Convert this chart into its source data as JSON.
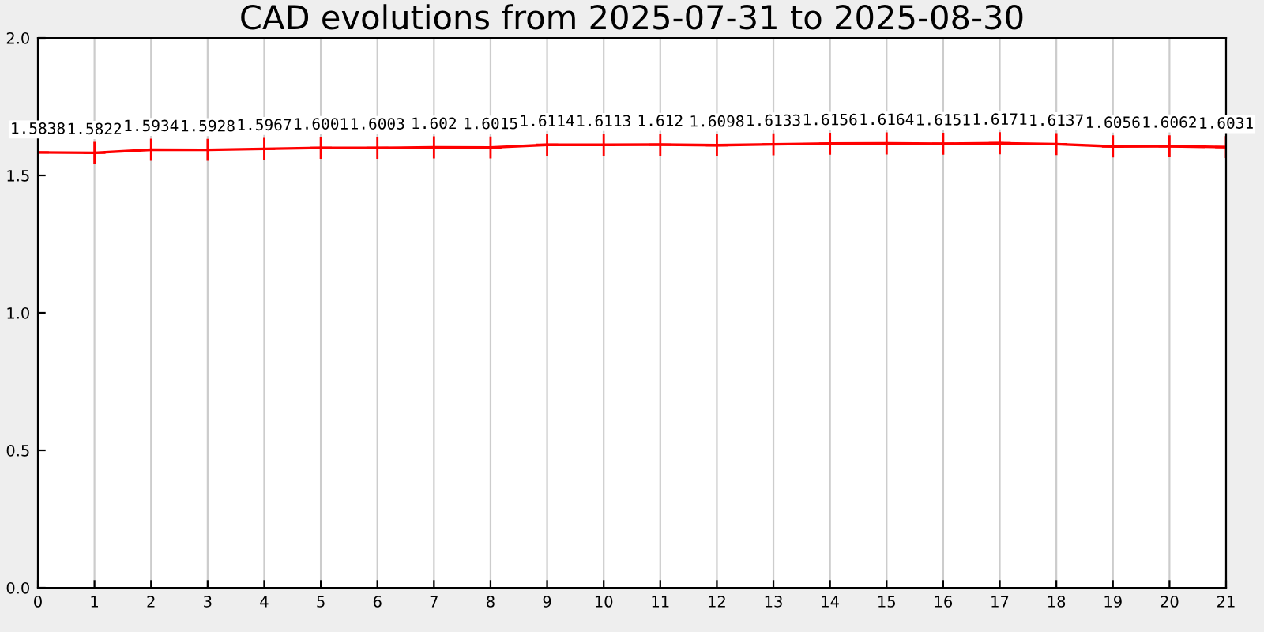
{
  "chart_data": {
    "type": "line",
    "title": "CAD evolutions from 2025-07-31 to 2025-08-30",
    "x": [
      0,
      1,
      2,
      3,
      4,
      5,
      6,
      7,
      8,
      9,
      10,
      11,
      12,
      13,
      14,
      15,
      16,
      17,
      18,
      19,
      20,
      21
    ],
    "series": [
      {
        "color": "#ff0000",
        "values": [
          1.5838,
          1.5822,
          1.5934,
          1.5928,
          1.5967,
          1.6001,
          1.6003,
          1.602,
          1.6015,
          1.6114,
          1.6113,
          1.612,
          1.6098,
          1.6133,
          1.6156,
          1.6164,
          1.6151,
          1.6171,
          1.6137,
          1.6056,
          1.6062,
          1.6031
        ]
      }
    ],
    "xlim": [
      0,
      21
    ],
    "xticks": [
      0,
      1,
      2,
      3,
      4,
      5,
      6,
      7,
      8,
      9,
      10,
      11,
      12,
      13,
      14,
      15,
      16,
      17,
      18,
      19,
      20,
      21
    ],
    "ylim": [
      0,
      2
    ],
    "yticks": [
      {
        "value": 0,
        "label": "0.0"
      },
      {
        "value": 0.5,
        "label": "0.5"
      },
      {
        "value": 1,
        "label": "1.0"
      },
      {
        "value": 1.5,
        "label": "1.5"
      },
      {
        "value": 2,
        "label": "2.0"
      }
    ],
    "grid": "x",
    "marker": "cross",
    "line_style": "solid",
    "data_labels": true
  }
}
